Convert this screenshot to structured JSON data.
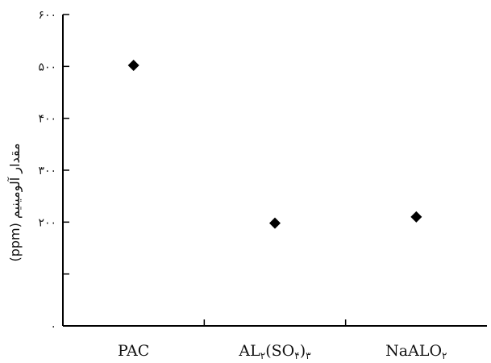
{
  "chart_data": {
    "type": "scatter",
    "title": "",
    "xlabel": "",
    "ylabel": "مقدار آلومینیم (ppm)",
    "ylim": [
      0,
      600
    ],
    "y_tick_labels": [
      "۰",
      "",
      "۲۰۰",
      "۳۰۰",
      "۴۰۰",
      "۵۰۰",
      "۶۰۰"
    ],
    "categories": [
      {
        "parts": [
          {
            "t": "PAC"
          }
        ]
      },
      {
        "parts": [
          {
            "t": "AL"
          },
          {
            "t": "۲",
            "sub": true
          },
          {
            "t": "(SO"
          },
          {
            "t": "۴",
            "sub": true
          },
          {
            "t": ")"
          },
          {
            "t": "۳",
            "sub": true
          }
        ]
      },
      {
        "parts": [
          {
            "t": "NaALO"
          },
          {
            "t": "۲",
            "sub": true
          }
        ]
      }
    ],
    "values": [
      502,
      198,
      210
    ],
    "marker": "diamond",
    "marker_color": "#000000",
    "grid": false,
    "legend": "none"
  }
}
